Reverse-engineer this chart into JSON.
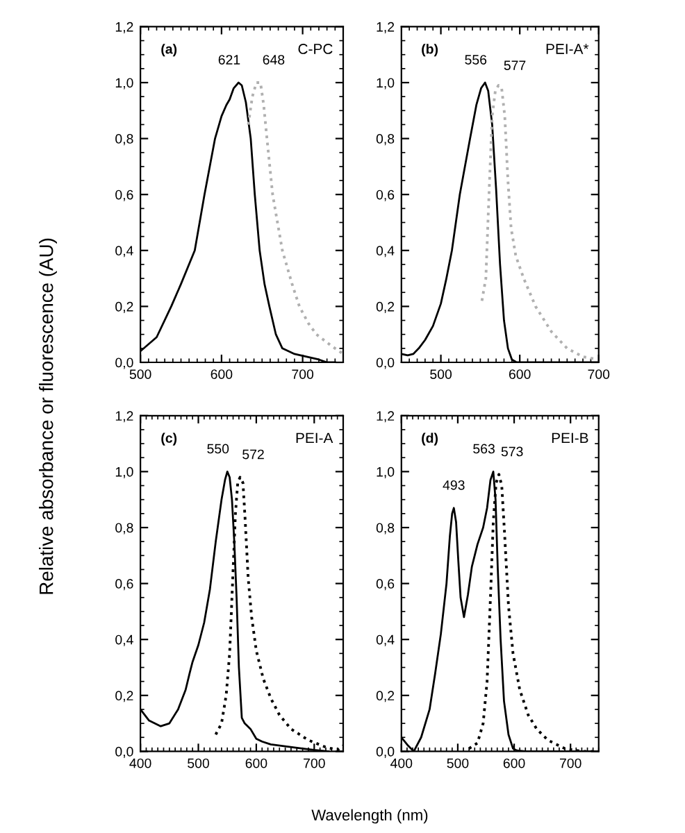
{
  "chart_data": [
    {
      "type": "line",
      "title": "C-PC",
      "annotations": [
        "(a)",
        {
          "text": "621",
          "x": 621,
          "y": 1.0
        },
        {
          "text": "648",
          "x": 648,
          "y": 1.0
        }
      ],
      "ylabel": "Relative absorbance or fluorescence (AU)",
      "xlim": [
        500,
        750
      ],
      "xticks": [
        500,
        600,
        700
      ],
      "ylim": [
        0,
        1.2
      ],
      "yticks": [
        {
          "value": 0,
          "label": "0,0"
        },
        {
          "value": 0.2,
          "label": "0,2"
        },
        {
          "value": 0.4,
          "label": "0,4"
        },
        {
          "value": 0.6,
          "label": "0,6"
        },
        {
          "value": 0.8,
          "label": "0,8"
        },
        {
          "value": 1.0,
          "label": "1,0"
        },
        {
          "value": 1.2,
          "label": "1,2"
        }
      ],
      "grid": false,
      "legend": false,
      "marker": "none",
      "series": [
        {
          "color": "#000000",
          "line_style": "solid",
          "x": [
            500,
            520,
            538,
            550,
            567,
            579,
            592,
            600,
            606,
            610,
            615,
            621,
            625,
            630,
            636,
            641,
            647,
            653,
            659,
            667,
            675,
            690,
            705,
            720,
            730,
            740
          ],
          "values": [
            0.04,
            0.09,
            0.2,
            0.28,
            0.4,
            0.6,
            0.8,
            0.88,
            0.92,
            0.94,
            0.98,
            1.0,
            0.99,
            0.93,
            0.8,
            0.6,
            0.4,
            0.28,
            0.2,
            0.1,
            0.05,
            0.03,
            0.02,
            0.01,
            0.0,
            0.0
          ]
        },
        {
          "color": "#b0b0b0",
          "line_style": "dotted",
          "x": [
            633,
            638,
            643,
            648,
            652,
            656,
            663,
            675,
            687,
            696,
            707,
            717,
            735,
            750
          ],
          "values": [
            0.85,
            0.95,
            1.0,
            1.0,
            0.92,
            0.8,
            0.6,
            0.4,
            0.28,
            0.2,
            0.14,
            0.1,
            0.06,
            0.03
          ]
        }
      ]
    },
    {
      "type": "line",
      "title": "PEI-A*",
      "annotations": [
        "(b)",
        {
          "text": "556",
          "x": 556,
          "y": 1.0
        },
        {
          "text": "577",
          "x": 577,
          "y": 0.98
        }
      ],
      "xlim": [
        450,
        700
      ],
      "xticks": [
        500,
        600,
        700
      ],
      "ylim": [
        0,
        1.2
      ],
      "yticks": [
        {
          "value": 0,
          "label": "0,0"
        },
        {
          "value": 0.2,
          "label": "0,2"
        },
        {
          "value": 0.4,
          "label": "0,4"
        },
        {
          "value": 0.6,
          "label": "0,6"
        },
        {
          "value": 0.8,
          "label": "0,8"
        },
        {
          "value": 1.0,
          "label": "1,0"
        },
        {
          "value": 1.2,
          "label": "1,2"
        }
      ],
      "grid": false,
      "legend": false,
      "marker": "none",
      "series": [
        {
          "color": "#000000",
          "line_style": "solid",
          "x": [
            450,
            458,
            465,
            472,
            480,
            490,
            500,
            507,
            514,
            524,
            537,
            545,
            551,
            556,
            560,
            565,
            570,
            575,
            580,
            585,
            590,
            596,
            620,
            660,
            700
          ],
          "values": [
            0.03,
            0.025,
            0.03,
            0.05,
            0.08,
            0.13,
            0.21,
            0.3,
            0.4,
            0.6,
            0.8,
            0.92,
            0.98,
            1.0,
            0.97,
            0.85,
            0.62,
            0.35,
            0.15,
            0.05,
            0.01,
            0.0,
            0.0,
            0.0,
            0.0
          ]
        },
        {
          "color": "#b0b0b0",
          "line_style": "dotted",
          "x": [
            552,
            557,
            561,
            565,
            569,
            573,
            577,
            581,
            585,
            589,
            595,
            605,
            620,
            640,
            660,
            680,
            700
          ],
          "values": [
            0.22,
            0.3,
            0.6,
            0.88,
            0.97,
            0.99,
            0.98,
            0.88,
            0.65,
            0.48,
            0.38,
            0.3,
            0.2,
            0.11,
            0.05,
            0.02,
            0.01
          ]
        }
      ]
    },
    {
      "type": "line",
      "title": "PEI-A",
      "annotations": [
        "(c)",
        {
          "text": "550",
          "x": 550,
          "y": 1.0
        },
        {
          "text": "572",
          "x": 572,
          "y": 0.98
        }
      ],
      "xlabel": "Wavelength (nm)",
      "xlim": [
        400,
        750
      ],
      "xticks": [
        400,
        500,
        600,
        700
      ],
      "ylim": [
        0,
        1.2
      ],
      "yticks": [
        {
          "value": 0,
          "label": "0,0"
        },
        {
          "value": 0.2,
          "label": "0,2"
        },
        {
          "value": 0.4,
          "label": "0,4"
        },
        {
          "value": 0.6,
          "label": "0,6"
        },
        {
          "value": 0.8,
          "label": "0,8"
        },
        {
          "value": 1.0,
          "label": "1,0"
        },
        {
          "value": 1.2,
          "label": "1,2"
        }
      ],
      "grid": false,
      "legend": false,
      "marker": "none",
      "series": [
        {
          "color": "#000000",
          "line_style": "solid",
          "x": [
            400,
            415,
            435,
            450,
            465,
            478,
            485,
            490,
            500,
            510,
            520,
            530,
            540,
            546,
            550,
            554,
            558,
            562,
            566,
            570,
            575,
            580,
            590,
            600,
            610,
            625,
            650,
            680,
            700,
            725
          ],
          "values": [
            0.15,
            0.11,
            0.09,
            0.1,
            0.15,
            0.22,
            0.28,
            0.32,
            0.38,
            0.46,
            0.58,
            0.75,
            0.9,
            0.97,
            1.0,
            0.98,
            0.9,
            0.75,
            0.55,
            0.3,
            0.12,
            0.1,
            0.08,
            0.045,
            0.035,
            0.025,
            0.018,
            0.01,
            0.005,
            0.0
          ]
        },
        {
          "color": "#000000",
          "line_style": "dotted",
          "x": [
            530,
            540,
            548,
            554,
            559,
            564,
            568,
            572,
            577,
            581,
            586,
            592,
            600,
            612,
            625,
            640,
            660,
            690,
            720,
            740,
            750
          ],
          "values": [
            0.06,
            0.1,
            0.2,
            0.35,
            0.6,
            0.85,
            0.96,
            0.98,
            0.96,
            0.82,
            0.62,
            0.48,
            0.36,
            0.26,
            0.19,
            0.13,
            0.08,
            0.04,
            0.015,
            0.005,
            0.02
          ]
        }
      ]
    },
    {
      "type": "line",
      "title": "PEI-B",
      "annotations": [
        "(d)",
        {
          "text": "493",
          "x": 493,
          "y": 0.87
        },
        {
          "text": "563",
          "x": 563,
          "y": 1.0
        },
        {
          "text": "573",
          "x": 573,
          "y": 0.99
        }
      ],
      "xlim": [
        400,
        750
      ],
      "xticks": [
        400,
        500,
        600,
        700
      ],
      "ylim": [
        0,
        1.2
      ],
      "yticks": [
        {
          "value": 0,
          "label": "0,0"
        },
        {
          "value": 0.2,
          "label": "0,2"
        },
        {
          "value": 0.4,
          "label": "0,4"
        },
        {
          "value": 0.6,
          "label": "0,6"
        },
        {
          "value": 0.8,
          "label": "0,8"
        },
        {
          "value": 1.0,
          "label": "1,0"
        },
        {
          "value": 1.2,
          "label": "1,2"
        }
      ],
      "grid": false,
      "legend": false,
      "marker": "none",
      "series": [
        {
          "color": "#000000",
          "line_style": "solid",
          "x": [
            400,
            412,
            422,
            435,
            450,
            460,
            470,
            480,
            486,
            490,
            493,
            497,
            501,
            505,
            511,
            518,
            525,
            535,
            545,
            552,
            558,
            563,
            567,
            571,
            576,
            582,
            590,
            598,
            605,
            620,
            750
          ],
          "values": [
            0.05,
            0.02,
            0.0,
            0.05,
            0.15,
            0.28,
            0.42,
            0.6,
            0.77,
            0.85,
            0.87,
            0.82,
            0.68,
            0.55,
            0.48,
            0.56,
            0.66,
            0.74,
            0.8,
            0.87,
            0.97,
            1.0,
            0.9,
            0.65,
            0.4,
            0.18,
            0.06,
            0.01,
            0.003,
            0.0,
            0.0
          ]
        },
        {
          "color": "#000000",
          "line_style": "dotted",
          "x": [
            520,
            535,
            545,
            552,
            558,
            563,
            568,
            573,
            578,
            583,
            590,
            598,
            610,
            625,
            640,
            660,
            690,
            720,
            750
          ],
          "values": [
            0.01,
            0.03,
            0.1,
            0.25,
            0.55,
            0.82,
            0.96,
            0.99,
            0.95,
            0.78,
            0.52,
            0.35,
            0.22,
            0.13,
            0.08,
            0.04,
            0.01,
            0.0,
            0.0
          ]
        }
      ]
    }
  ]
}
